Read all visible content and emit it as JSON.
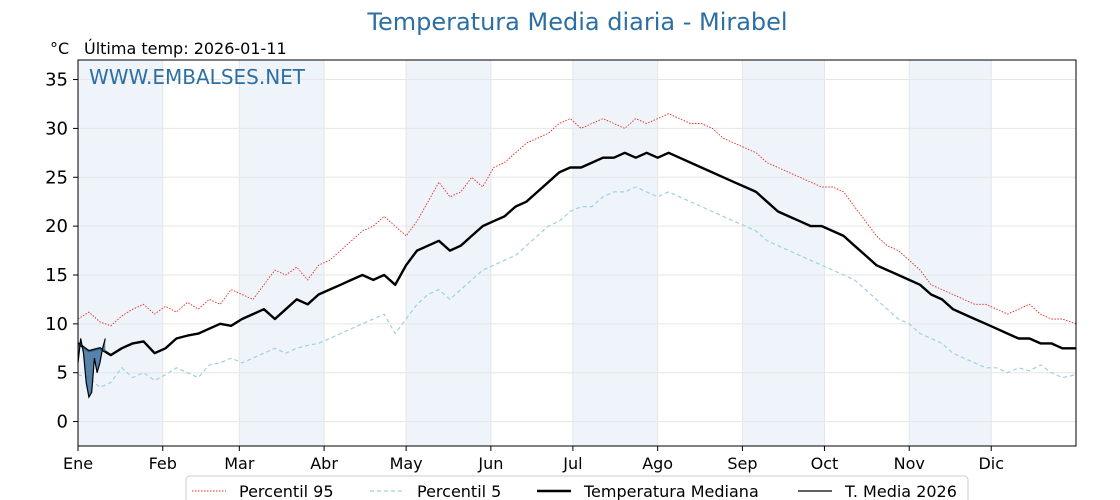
{
  "header": {
    "title": "Temperatura Media diaria - Mirabel",
    "unit": "°C",
    "last_temp": "Última temp: 2026-01-11",
    "watermark": "WWW.EMBALSES.NET"
  },
  "colors": {
    "title": "#2e6fa3",
    "watermark": "#2e6fa3",
    "p95": "#e8291c",
    "p5": "#9fd0e0",
    "median": "#000000",
    "current": "#000000",
    "current_fill": "#3a6f9e",
    "month_band": "#eef4fa"
  },
  "legend": [
    {
      "key": "p95",
      "label": "Percentil 95"
    },
    {
      "key": "p5",
      "label": "Percentil 5"
    },
    {
      "key": "median",
      "label": "Temperatura Mediana"
    },
    {
      "key": "current",
      "label": "T. Media 2026"
    }
  ],
  "chart_data": {
    "type": "line",
    "title": "Temperatura Media diaria - Mirabel",
    "xlabel": "",
    "ylabel": "°C",
    "ylim": [
      -2.5,
      37
    ],
    "xlim": [
      1,
      366
    ],
    "yticks": [
      0,
      5,
      10,
      15,
      20,
      25,
      30,
      35
    ],
    "grid": true,
    "legend_position": "bottom",
    "month_ticks": [
      {
        "label": "Ene",
        "day": 1
      },
      {
        "label": "Feb",
        "day": 32
      },
      {
        "label": "Mar",
        "day": 60
      },
      {
        "label": "Abr",
        "day": 91
      },
      {
        "label": "May",
        "day": 121
      },
      {
        "label": "Jun",
        "day": 152
      },
      {
        "label": "Jul",
        "day": 182
      },
      {
        "label": "Ago",
        "day": 213
      },
      {
        "label": "Sep",
        "day": 244
      },
      {
        "label": "Oct",
        "day": 274
      },
      {
        "label": "Nov",
        "day": 305
      },
      {
        "label": "Dic",
        "day": 335
      }
    ],
    "series": [
      {
        "key": "p95",
        "name": "Percentil 95",
        "style": "dotted",
        "x": [
          1,
          5,
          9,
          13,
          17,
          21,
          25,
          29,
          33,
          37,
          41,
          45,
          49,
          53,
          57,
          61,
          65,
          69,
          73,
          77,
          81,
          85,
          89,
          93,
          97,
          101,
          105,
          109,
          113,
          117,
          121,
          125,
          129,
          133,
          137,
          141,
          145,
          149,
          153,
          157,
          161,
          165,
          169,
          173,
          177,
          181,
          185,
          189,
          193,
          197,
          201,
          205,
          209,
          213,
          217,
          221,
          225,
          229,
          233,
          237,
          241,
          245,
          249,
          253,
          257,
          261,
          265,
          269,
          273,
          277,
          281,
          285,
          289,
          293,
          297,
          301,
          305,
          309,
          313,
          317,
          321,
          325,
          329,
          333,
          337,
          341,
          345,
          349,
          353,
          357,
          361,
          366
        ],
        "values": [
          10.5,
          11.2,
          10.2,
          9.8,
          10.8,
          11.5,
          12.0,
          11.0,
          11.8,
          11.2,
          12.2,
          11.5,
          12.5,
          12.0,
          13.5,
          13.0,
          12.5,
          14.0,
          15.5,
          15.0,
          15.8,
          14.5,
          16.0,
          16.5,
          17.5,
          18.5,
          19.5,
          20.0,
          21.0,
          20.0,
          19.0,
          20.5,
          22.5,
          24.5,
          23.0,
          23.5,
          25.0,
          24.0,
          26.0,
          26.5,
          27.5,
          28.5,
          29.0,
          29.5,
          30.5,
          31.0,
          30.0,
          30.5,
          31.0,
          30.5,
          30.0,
          31.0,
          30.5,
          31.0,
          31.5,
          31.0,
          30.5,
          30.5,
          30.0,
          29.0,
          28.5,
          28.0,
          27.5,
          26.5,
          26.0,
          25.5,
          25.0,
          24.5,
          24.0,
          24.0,
          23.5,
          22.0,
          20.5,
          19.0,
          18.0,
          17.5,
          16.5,
          15.5,
          14.0,
          13.5,
          13.0,
          12.5,
          12.0,
          12.0,
          11.5,
          11.0,
          11.5,
          12.0,
          11.0,
          10.5,
          10.5,
          10.0
        ]
      },
      {
        "key": "p5",
        "name": "Percentil 5",
        "style": "dashed",
        "x": [
          1,
          5,
          9,
          13,
          17,
          21,
          25,
          29,
          33,
          37,
          41,
          45,
          49,
          53,
          57,
          61,
          65,
          69,
          73,
          77,
          81,
          85,
          89,
          93,
          97,
          101,
          105,
          109,
          113,
          117,
          121,
          125,
          129,
          133,
          137,
          141,
          145,
          149,
          153,
          157,
          161,
          165,
          169,
          173,
          177,
          181,
          185,
          189,
          193,
          197,
          201,
          205,
          209,
          213,
          217,
          221,
          225,
          229,
          233,
          237,
          241,
          245,
          249,
          253,
          257,
          261,
          265,
          269,
          273,
          277,
          281,
          285,
          289,
          293,
          297,
          301,
          305,
          309,
          313,
          317,
          321,
          325,
          329,
          333,
          337,
          341,
          345,
          349,
          353,
          357,
          361,
          366
        ],
        "values": [
          4.8,
          4.5,
          3.5,
          4.0,
          5.5,
          4.5,
          5.0,
          4.2,
          4.8,
          5.5,
          5.0,
          4.5,
          5.8,
          6.0,
          6.5,
          6.0,
          6.5,
          7.0,
          7.5,
          7.0,
          7.5,
          7.8,
          8.0,
          8.5,
          9.0,
          9.5,
          10.0,
          10.5,
          11.0,
          9.0,
          10.5,
          12.0,
          13.0,
          13.5,
          12.5,
          13.5,
          14.5,
          15.5,
          16.0,
          16.5,
          17.0,
          18.0,
          19.0,
          20.0,
          20.5,
          21.5,
          22.0,
          22.0,
          23.0,
          23.5,
          23.5,
          24.0,
          23.5,
          23.0,
          23.5,
          23.0,
          22.5,
          22.0,
          21.5,
          21.0,
          20.5,
          20.0,
          19.5,
          18.5,
          18.0,
          17.5,
          17.0,
          16.5,
          16.0,
          15.5,
          15.0,
          14.5,
          13.5,
          12.5,
          11.5,
          10.5,
          10.0,
          9.0,
          8.5,
          8.0,
          7.0,
          6.5,
          6.0,
          5.5,
          5.5,
          5.0,
          5.5,
          5.2,
          5.8,
          5.0,
          4.5,
          4.8
        ]
      },
      {
        "key": "median",
        "name": "Temperatura Mediana",
        "style": "solid-bold",
        "x": [
          1,
          5,
          9,
          13,
          17,
          21,
          25,
          29,
          33,
          37,
          41,
          45,
          49,
          53,
          57,
          61,
          65,
          69,
          73,
          77,
          81,
          85,
          89,
          93,
          97,
          101,
          105,
          109,
          113,
          117,
          121,
          125,
          129,
          133,
          137,
          141,
          145,
          149,
          153,
          157,
          161,
          165,
          169,
          173,
          177,
          181,
          185,
          189,
          193,
          197,
          201,
          205,
          209,
          213,
          217,
          221,
          225,
          229,
          233,
          237,
          241,
          245,
          249,
          253,
          257,
          261,
          265,
          269,
          273,
          277,
          281,
          285,
          289,
          293,
          297,
          301,
          305,
          309,
          313,
          317,
          321,
          325,
          329,
          333,
          337,
          341,
          345,
          349,
          353,
          357,
          361,
          366
        ],
        "values": [
          8.0,
          7.2,
          7.5,
          6.8,
          7.5,
          8.0,
          8.2,
          7.0,
          7.5,
          8.5,
          8.8,
          9.0,
          9.5,
          10.0,
          9.8,
          10.5,
          11.0,
          11.5,
          10.5,
          11.5,
          12.5,
          12.0,
          13.0,
          13.5,
          14.0,
          14.5,
          15.0,
          14.5,
          15.0,
          14.0,
          16.0,
          17.5,
          18.0,
          18.5,
          17.5,
          18.0,
          19.0,
          20.0,
          20.5,
          21.0,
          22.0,
          22.5,
          23.5,
          24.5,
          25.5,
          26.0,
          26.0,
          26.5,
          27.0,
          27.0,
          27.5,
          27.0,
          27.5,
          27.0,
          27.5,
          27.0,
          26.5,
          26.0,
          25.5,
          25.0,
          24.5,
          24.0,
          23.5,
          22.5,
          21.5,
          21.0,
          20.5,
          20.0,
          20.0,
          19.5,
          19.0,
          18.0,
          17.0,
          16.0,
          15.5,
          15.0,
          14.5,
          14.0,
          13.0,
          12.5,
          11.5,
          11.0,
          10.5,
          10.0,
          9.5,
          9.0,
          8.5,
          8.5,
          8.0,
          8.0,
          7.5,
          7.5
        ]
      },
      {
        "key": "current",
        "name": "T. Media 2026",
        "style": "solid-thin",
        "x": [
          1,
          2,
          3,
          4,
          5,
          6,
          7,
          8,
          9,
          10,
          11
        ],
        "values": [
          6.0,
          8.5,
          7.0,
          4.0,
          2.5,
          3.0,
          6.5,
          5.0,
          6.0,
          7.5,
          8.5
        ]
      }
    ]
  }
}
